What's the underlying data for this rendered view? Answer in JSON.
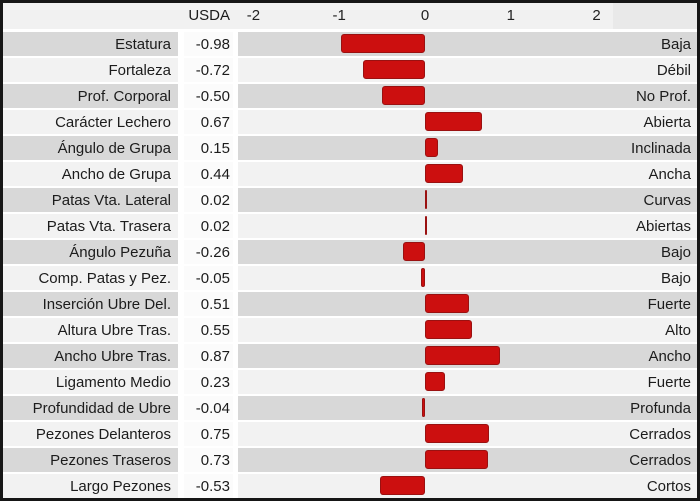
{
  "header": {
    "usda_label": "USDA"
  },
  "colors": {
    "bar": "#cc0f0f",
    "bar_border": "#9a1111",
    "row_odd": "#d8d8d8",
    "row_even": "#f2f2f2",
    "usda_col": "#fbfbfb",
    "header_bg": "#f1f1f1",
    "header_corner": "#e9e9e9",
    "frame_border": "#161616"
  },
  "chart_data": {
    "type": "bar",
    "orientation": "horizontal",
    "title": "",
    "xlabel": "",
    "ylabel": "",
    "value_column_header": "USDA",
    "tick_values": [
      -2,
      -1,
      0,
      1,
      2
    ],
    "axis_range": [
      -2,
      2
    ],
    "grid": false,
    "legend": false,
    "bar_color": "#cc0f0f",
    "rows": [
      {
        "trait": "Estatura",
        "usda": "-0.98",
        "value": -0.98,
        "descriptor": "Baja"
      },
      {
        "trait": "Fortaleza",
        "usda": "-0.72",
        "value": -0.72,
        "descriptor": "Débil"
      },
      {
        "trait": "Prof. Corporal",
        "usda": "-0.50",
        "value": -0.5,
        "descriptor": "No Prof."
      },
      {
        "trait": "Carácter Lechero",
        "usda": "0.67",
        "value": 0.67,
        "descriptor": "Abierta"
      },
      {
        "trait": "Ángulo de Grupa",
        "usda": "0.15",
        "value": 0.15,
        "descriptor": "Inclinada"
      },
      {
        "trait": "Ancho de Grupa",
        "usda": "0.44",
        "value": 0.44,
        "descriptor": "Ancha"
      },
      {
        "trait": "Patas Vta. Lateral",
        "usda": "0.02",
        "value": 0.02,
        "descriptor": "Curvas"
      },
      {
        "trait": "Patas Vta. Trasera",
        "usda": "0.02",
        "value": 0.02,
        "descriptor": "Abiertas"
      },
      {
        "trait": "Ángulo Pezuña",
        "usda": "-0.26",
        "value": -0.26,
        "descriptor": "Bajo"
      },
      {
        "trait": "Comp. Patas y Pez.",
        "usda": "-0.05",
        "value": -0.05,
        "descriptor": "Bajo"
      },
      {
        "trait": "Inserción Ubre Del.",
        "usda": "0.51",
        "value": 0.51,
        "descriptor": "Fuerte"
      },
      {
        "trait": "Altura Ubre Tras.",
        "usda": "0.55",
        "value": 0.55,
        "descriptor": "Alto"
      },
      {
        "trait": "Ancho Ubre Tras.",
        "usda": "0.87",
        "value": 0.87,
        "descriptor": "Ancho"
      },
      {
        "trait": "Ligamento Medio",
        "usda": "0.23",
        "value": 0.23,
        "descriptor": "Fuerte"
      },
      {
        "trait": "Profundidad de Ubre",
        "usda": "-0.04",
        "value": -0.04,
        "descriptor": "Profunda"
      },
      {
        "trait": "Pezones Delanteros",
        "usda": "0.75",
        "value": 0.75,
        "descriptor": "Cerrados"
      },
      {
        "trait": "Pezones Traseros",
        "usda": "0.73",
        "value": 0.73,
        "descriptor": "Cerrados"
      },
      {
        "trait": "Largo Pezones",
        "usda": "-0.53",
        "value": -0.53,
        "descriptor": "Cortos"
      }
    ]
  }
}
